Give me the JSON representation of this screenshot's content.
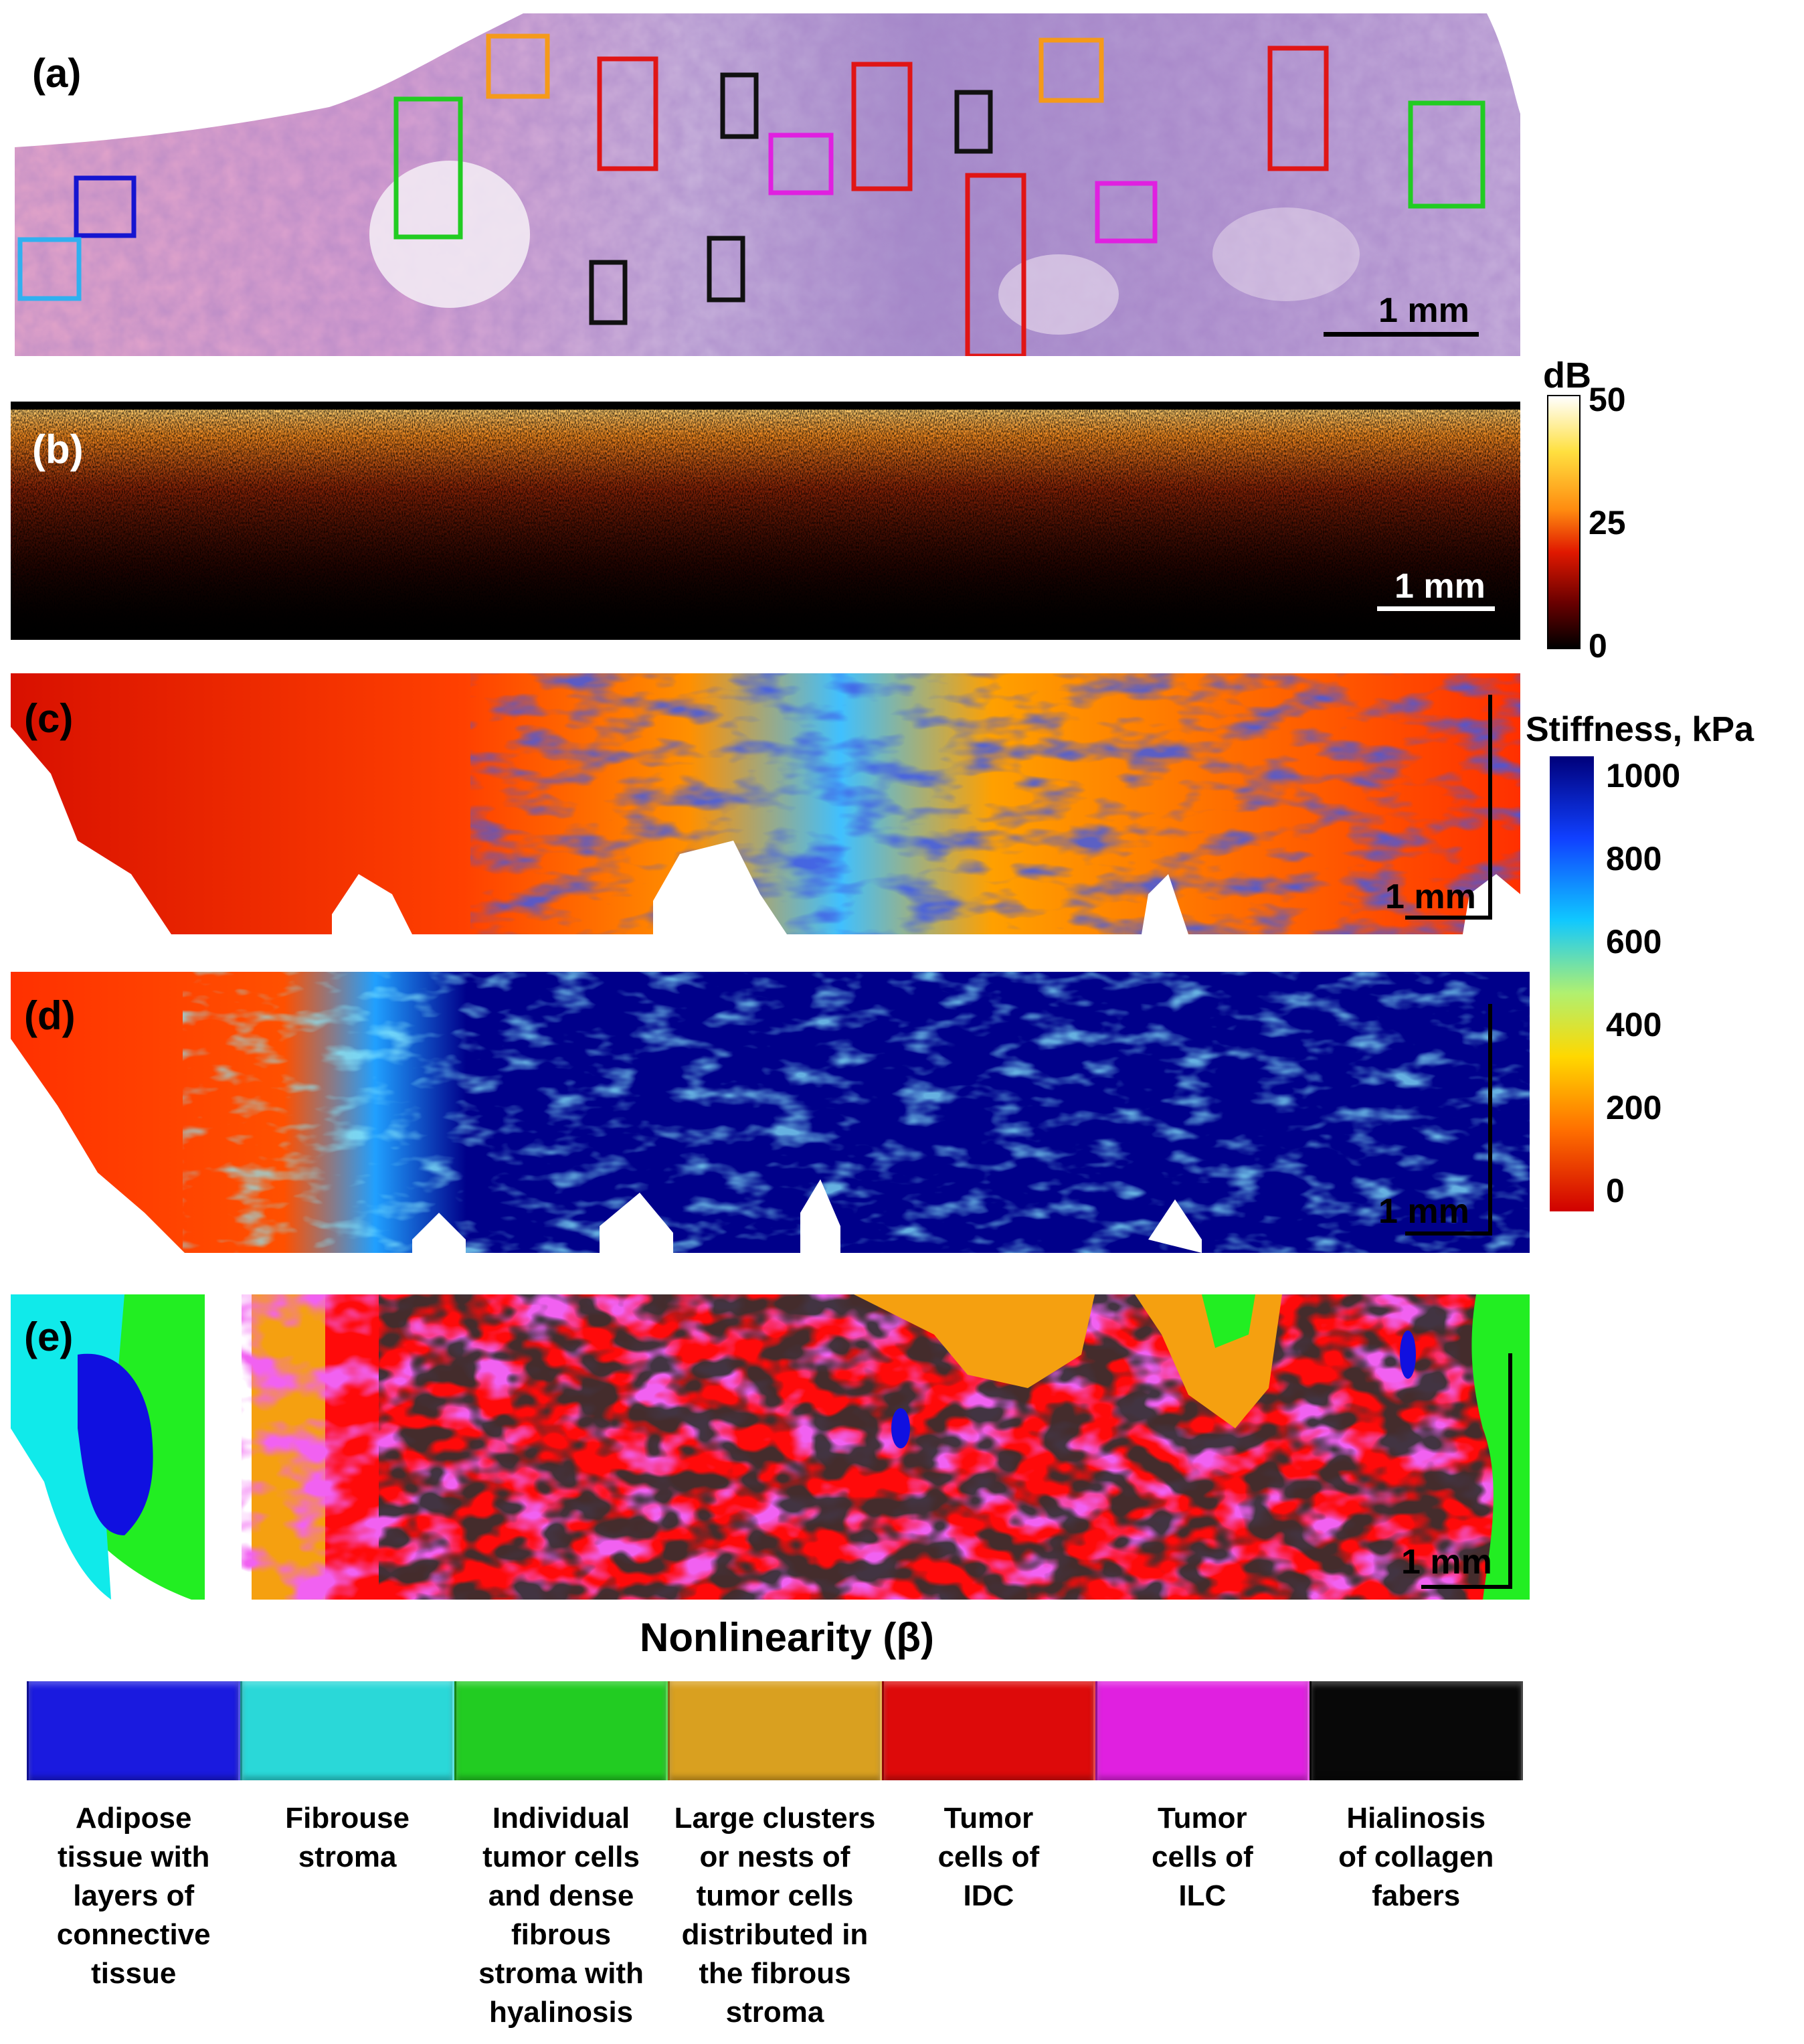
{
  "figure": {
    "panels": {
      "a": {
        "label": "(a)",
        "scale_label": "1 mm"
      },
      "b": {
        "label": "(b)",
        "scale_label": "1 mm"
      },
      "c": {
        "label": "(c)",
        "scale_label": "1 mm"
      },
      "d": {
        "label": "(d)",
        "scale_label": "1 mm"
      },
      "e": {
        "label": "(e)",
        "scale_label": "1 mm"
      }
    },
    "oct_colorbar": {
      "title": "dB",
      "ticks": [
        "50",
        "25",
        "0"
      ],
      "colors": [
        "#ffffff",
        "#ffe040",
        "#ff8c10",
        "#e01800",
        "#6a0000",
        "#000000"
      ]
    },
    "stiffness_colorbar": {
      "title": "Stiffness, kPa",
      "ticks": [
        "1000",
        "800",
        "600",
        "400",
        "200",
        "0"
      ],
      "colors": [
        "#00007a",
        "#1040ff",
        "#10c8ff",
        "#b0f070",
        "#ffd800",
        "#ff7000",
        "#d00000"
      ]
    },
    "nonlinearity_legend": {
      "title": "Nonlinearity  (β)",
      "items": [
        {
          "color": "#1a1adf",
          "label": "Adipose\ntissue with\nlayers of\nconnective\ntissue"
        },
        {
          "color": "#2ad8d8",
          "label": "Fibrouse\nstroma"
        },
        {
          "color": "#22cc22",
          "label": "Individual\ntumor cells\nand dense\nfibrous\nstroma with\nhyalinosis"
        },
        {
          "color": "#d9a020",
          "label": "Large clusters\nor nests of\ntumor cells\ndistributed in\nthe fibrous\nstroma"
        },
        {
          "color": "#dd0a0a",
          "label": "Tumor\ncells  of\nIDC"
        },
        {
          "color": "#e020e0",
          "label": "Tumor\ncells  of\nILC"
        },
        {
          "color": "#080808",
          "label": "Hialinosis\nof collagen\nfabers"
        }
      ]
    },
    "histology_roi_colors": {
      "red": "#e01515",
      "black": "#111111",
      "green": "#22cc22",
      "orange": "#f59a1a",
      "magenta": "#e020e0",
      "blue": "#1515d0",
      "lightblue": "#30b0f0"
    }
  }
}
